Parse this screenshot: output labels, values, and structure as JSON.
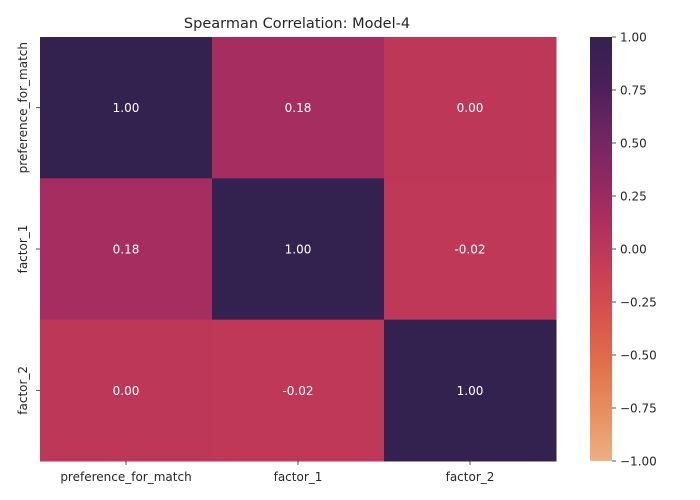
{
  "chart_data": {
    "type": "heatmap",
    "title": "Spearman Correlation: Model-4",
    "x_categories": [
      "preference_for_match",
      "factor_1",
      "factor_2"
    ],
    "y_categories": [
      "preference_for_match",
      "factor_1",
      "factor_2"
    ],
    "values": [
      [
        1.0,
        0.18,
        0.0
      ],
      [
        0.18,
        1.0,
        -0.02
      ],
      [
        0.0,
        -0.02,
        1.0
      ]
    ],
    "value_labels": [
      [
        "1.00",
        "0.18",
        "0.00"
      ],
      [
        "0.18",
        "1.00",
        "-0.02"
      ],
      [
        "0.00",
        "-0.02",
        "1.00"
      ]
    ],
    "vmin": -1.0,
    "vmax": 1.0,
    "colorbar_ticks": [
      1.0,
      0.75,
      0.5,
      0.25,
      0.0,
      -0.25,
      -0.5,
      -0.75,
      -1.0
    ],
    "colorbar_tick_labels": [
      "1.00",
      "0.75",
      "0.50",
      "0.25",
      "0.00",
      "−0.25",
      "−0.50",
      "−0.75",
      "−1.00"
    ],
    "colormap": "flare",
    "colormap_stops": [
      "#edb081",
      "#e89063",
      "#e2714d",
      "#d9544d",
      "#c93f55",
      "#b02f5d",
      "#8f2862",
      "#6d2562",
      "#4a1f5a",
      "#33214f"
    ],
    "label_color_light": "#ffffff",
    "label_color_dark": "#262626",
    "grid": false
  }
}
